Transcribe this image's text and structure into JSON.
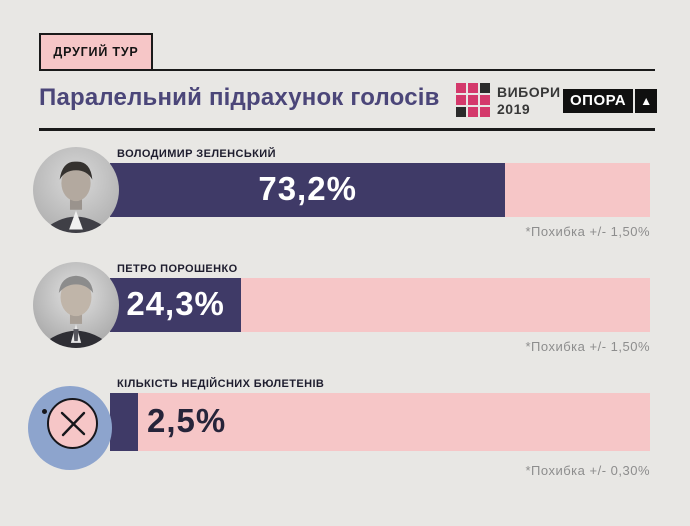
{
  "page": {
    "background": "#e8e7e4"
  },
  "header": {
    "round_label": "ДРУГИЙ ТУР",
    "title": "Паралельний підрахунок голосів"
  },
  "logos": {
    "vybory": {
      "line1": "ВИБОРИ",
      "line2": "2019",
      "grid": [
        [
          "pink",
          "pink",
          "black"
        ],
        [
          "pink",
          "pink",
          "pink"
        ],
        [
          "black",
          "pink",
          "pink"
        ]
      ],
      "pink": "#d4396b",
      "black": "#2b2b2b"
    },
    "opora": {
      "label": "ОПОРА",
      "triangle": "▲"
    }
  },
  "chart_data": {
    "type": "bar",
    "orientation": "horizontal",
    "title": "Паралельний підрахунок голосів",
    "subtitle": "ДРУГИЙ ТУР",
    "unit": "%",
    "xlim": [
      0,
      100
    ],
    "grid": false,
    "legend": "none",
    "bars": [
      {
        "label": "ВОЛОДИМИР ЗЕЛЕНСЬКИЙ",
        "value": 73.2,
        "value_label": "73,2%",
        "error_note": "*Похибка +/- 1,50%",
        "avatar": "zelensky-portrait-photo",
        "value_label_inside": true
      },
      {
        "label": "ПЕТРО ПОРОШЕНКО",
        "value": 24.3,
        "value_label": "24,3%",
        "error_note": "*Похибка +/- 1,50%",
        "avatar": "poroshenko-portrait-photo",
        "value_label_inside": true
      },
      {
        "label": "КІЛЬКІСТЬ НЕДІЙСНИХ БЮЛЕТЕНІВ",
        "value": 2.5,
        "value_label": "2,5%",
        "error_note": "*Похибка +/- 0,30%",
        "avatar": "invalid-ballot-x-icon",
        "value_label_inside": false
      }
    ],
    "colors": {
      "bar_fill": "#3f3a67",
      "bar_track": "#f6c6c7",
      "value_text_inside": "#ffffff",
      "value_text_outside": "#26243a",
      "icon_circle_blue": "#8da4cd",
      "title_text": "#4b4679",
      "accent_pink": "#f6c6c7"
    }
  }
}
